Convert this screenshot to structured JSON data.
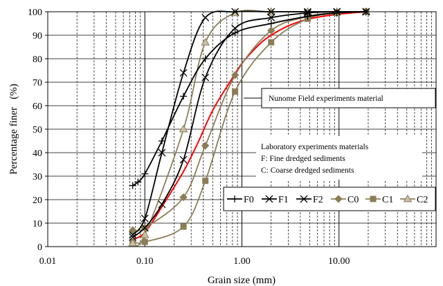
{
  "chart_data": {
    "type": "line",
    "title": "",
    "xlabel": "Grain size (mm)",
    "ylabel": "Percentage finer   (%)",
    "x_scale": "log",
    "xlim": [
      0.01,
      100
    ],
    "ylim": [
      0,
      100
    ],
    "x_tick_labels": [
      "0.01",
      "0.10",
      "1.00",
      "10.00"
    ],
    "x_tick_values": [
      0.01,
      0.1,
      1,
      10
    ],
    "y_ticks": [
      0,
      10,
      20,
      30,
      40,
      50,
      60,
      70,
      80,
      90,
      100
    ],
    "grid": true,
    "legend_position": "right",
    "series": [
      {
        "name": "F0",
        "color": "#000000",
        "marker": "plus",
        "x": [
          0.075,
          0.085,
          0.1,
          0.15,
          0.25,
          0.42,
          0.85,
          2.0,
          4.75,
          9.5,
          19.0
        ],
        "y": [
          26,
          27.5,
          31,
          45,
          64,
          80,
          91,
          95,
          98,
          99.5,
          100
        ]
      },
      {
        "name": "F1",
        "color": "#000000",
        "marker": "x",
        "x": [
          0.075,
          0.1,
          0.15,
          0.25,
          0.42,
          0.85,
          2.0,
          4.75,
          9.5,
          19.0
        ],
        "y": [
          4,
          8,
          18,
          37,
          72,
          93,
          97.5,
          99.5,
          100,
          100
        ]
      },
      {
        "name": "F2",
        "color": "#000000",
        "marker": "x",
        "x": [
          0.075,
          0.1,
          0.15,
          0.25,
          0.42,
          0.85,
          2.0,
          4.75,
          9.5,
          19.0
        ],
        "y": [
          5,
          12,
          40,
          74,
          97.5,
          100,
          100,
          100,
          100,
          100
        ]
      },
      {
        "name": "C0",
        "color": "#8c7d57",
        "marker": "diamond",
        "x": [
          0.075,
          0.1,
          0.25,
          0.42,
          0.85,
          2.0,
          4.75,
          9.5,
          19.0
        ],
        "y": [
          7,
          8,
          21,
          43,
          73,
          92,
          98,
          99.5,
          100
        ]
      },
      {
        "name": "C1",
        "color": "#8c7d57",
        "marker": "square",
        "x": [
          0.075,
          0.1,
          0.25,
          0.42,
          0.85,
          2.0,
          4.75,
          9.5,
          19.0
        ],
        "y": [
          2,
          2,
          8.5,
          28,
          66,
          87,
          97,
          99.5,
          100
        ]
      },
      {
        "name": "C2",
        "color": "#8c7d57",
        "marker": "triangle",
        "x": [
          0.075,
          0.1,
          0.25,
          0.42,
          0.85,
          2.0,
          4.75,
          9.5,
          19.0
        ],
        "y": [
          1.5,
          5,
          50,
          87,
          99.5,
          100,
          100,
          100,
          100
        ]
      },
      {
        "name": "",
        "color": "#ff0000",
        "marker": "none",
        "x": [
          0.075,
          0.1,
          0.15,
          0.25,
          0.35,
          0.5,
          0.75,
          1.0,
          1.5,
          2.0,
          3.0,
          5.0,
          10.0,
          20.0
        ],
        "y": [
          3,
          6,
          17,
          32,
          44,
          58,
          70,
          78,
          86,
          90,
          94,
          97,
          99,
          100
        ]
      }
    ],
    "annotations": {
      "field": "Nunome Field experiments material",
      "lab_lines": [
        "Laboratory experiments materials",
        "F: Fine dredged sediments",
        "C: Coarse dredged sediments"
      ]
    }
  }
}
